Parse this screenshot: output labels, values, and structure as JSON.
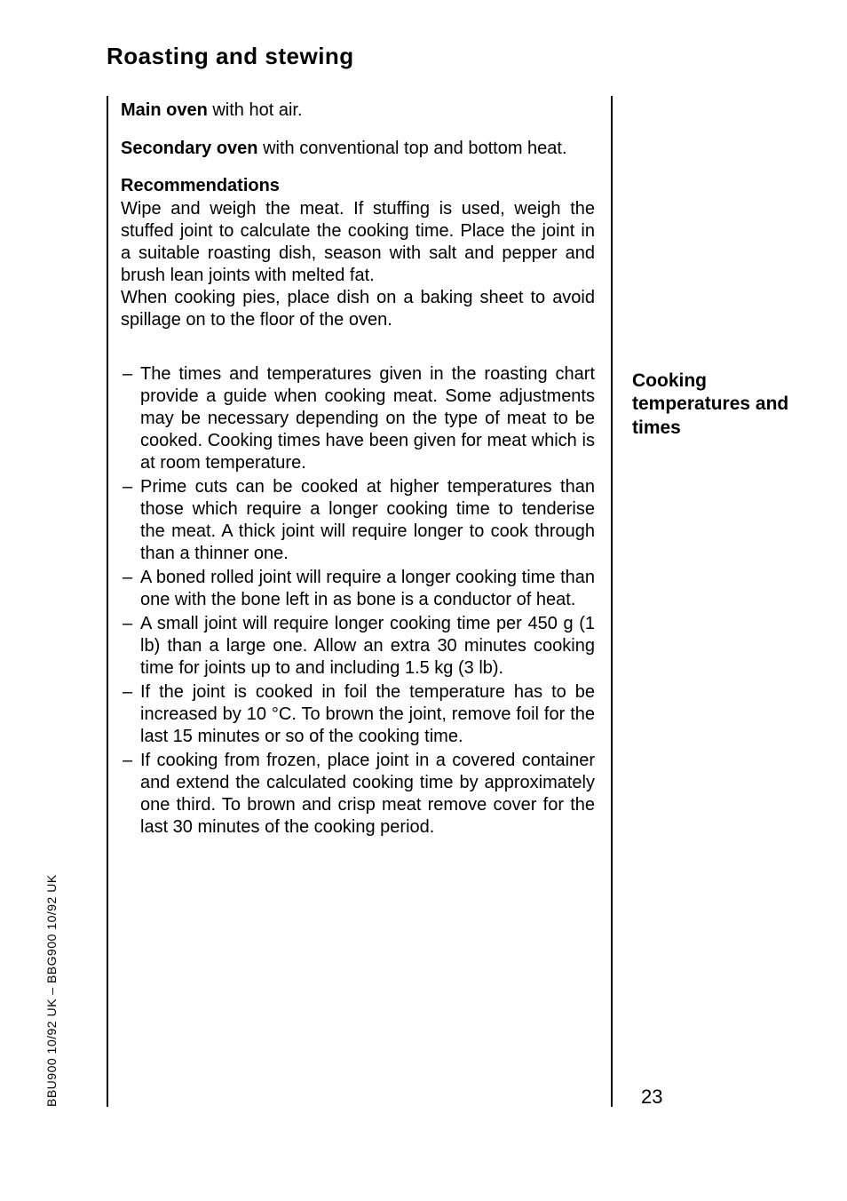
{
  "title": "Roasting and stewing",
  "intro": {
    "main_oven_label": "Main oven",
    "main_oven_text": " with hot air.",
    "secondary_oven_label": "Secondary oven",
    "secondary_oven_text": " with conventional top and bottom heat."
  },
  "recommendations": {
    "heading": "Recommendations",
    "para1": "Wipe and weigh the meat. If stuffing is used, weigh the stuffed joint to calculate the cooking time. Place the joint in a suitable roasting dish, season with salt and pepper and brush lean joints with melted fat.",
    "para2": "When cooking pies, place dish on a baking sheet to avoid spillage on to the floor of the oven."
  },
  "bullets": [
    "The times and temperatures given in the roasting chart provide a guide when cooking meat. Some adjustments may be necessary depending on the type of meat to be cooked. Cooking times have been given for meat which is at room temperature.",
    "Prime cuts can be cooked at higher temperatures than those which require a longer cooking time to tenderise the meat. A thick joint will require longer to cook through than a thinner one.",
    "A boned rolled joint will require a longer cooking time than one with the bone left in as bone is a conductor of heat.",
    "A small joint will require longer cooking time per 450 g (1 lb) than a large one. Allow an extra 30 minutes cooking time for joints up to and including 1.5 kg (3 lb).",
    "If the joint is cooked in foil the temperature has to be increased by 10 °C. To brown the joint, remove foil for the last 15 minutes or so of the cooking time.",
    "If cooking from frozen, place joint in a covered container and extend the calculated cooking time by approximately one third. To brown and crisp meat remove cover for the last 30 minutes of the cooking period."
  ],
  "margin_heading": "Cooking temperatures and times",
  "page_number": "23",
  "spine": "BBU900 10/92  UK – BBG900 10/92  UK"
}
